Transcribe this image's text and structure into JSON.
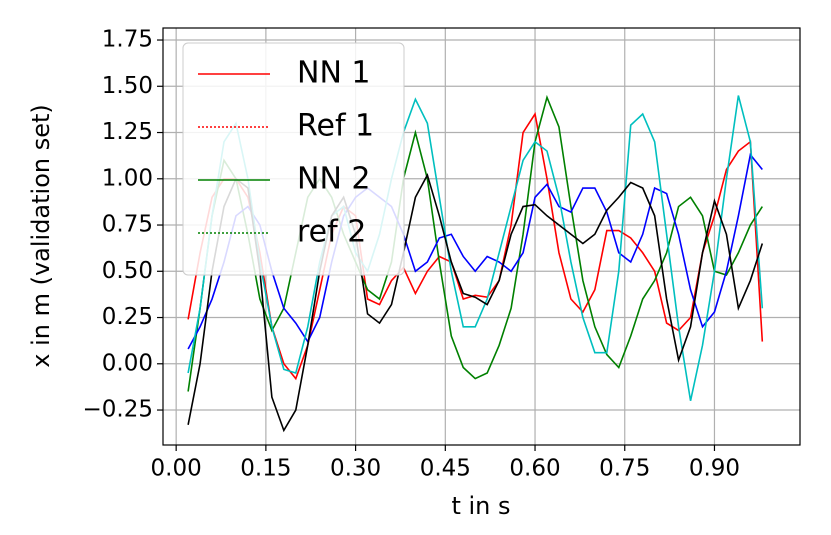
{
  "chart_data": {
    "type": "line",
    "xlabel": "t in s",
    "ylabel": "x in m (validation set)",
    "x": [
      0.02,
      0.04,
      0.06,
      0.08,
      0.1,
      0.12,
      0.14,
      0.16,
      0.18,
      0.2,
      0.22,
      0.24,
      0.26,
      0.28,
      0.3,
      0.32,
      0.34,
      0.36,
      0.38,
      0.4,
      0.42,
      0.44,
      0.46,
      0.48,
      0.5,
      0.52,
      0.54,
      0.56,
      0.58,
      0.6,
      0.62,
      0.64,
      0.66,
      0.68,
      0.7,
      0.72,
      0.74,
      0.76,
      0.78,
      0.8,
      0.82,
      0.84,
      0.86,
      0.88,
      0.9,
      0.92,
      0.94,
      0.96,
      0.98
    ],
    "series": [
      {
        "name": "NN 1",
        "color": "#ff0000",
        "dash": "solid",
        "values": [
          0.24,
          0.6,
          0.9,
          1.0,
          1.0,
          0.9,
          0.6,
          0.2,
          0.0,
          -0.08,
          0.1,
          0.4,
          0.7,
          0.85,
          0.8,
          0.35,
          0.32,
          0.45,
          0.52,
          0.38,
          0.5,
          0.58,
          0.55,
          0.35,
          0.37,
          0.36,
          0.45,
          0.75,
          1.25,
          1.35,
          1.0,
          0.6,
          0.35,
          0.28,
          0.4,
          0.72,
          0.72,
          0.68,
          0.6,
          0.5,
          0.22,
          0.18,
          0.25,
          0.6,
          0.8,
          1.05,
          1.15,
          1.2,
          0.12
        ]
      },
      {
        "name": "Ref 1",
        "color": "#ff0000",
        "dash": "dotted",
        "values": [
          null,
          null,
          null,
          null,
          null,
          null,
          null,
          null,
          null,
          null,
          null,
          null,
          null,
          null,
          null,
          null,
          null,
          null,
          null,
          null,
          null,
          null,
          null,
          null,
          null,
          null,
          null,
          null,
          null,
          null,
          null,
          null,
          null,
          null,
          null,
          null,
          null,
          null,
          null,
          null,
          null,
          null,
          null,
          null,
          null,
          null,
          null,
          null,
          null
        ]
      },
      {
        "name": "NN 2",
        "color": "#008000",
        "dash": "solid",
        "values": [
          -0.15,
          0.3,
          0.8,
          1.1,
          1.0,
          0.7,
          0.35,
          0.18,
          0.3,
          0.6,
          0.9,
          1.0,
          0.9,
          0.7,
          0.55,
          0.4,
          0.35,
          0.55,
          1.0,
          1.25,
          1.0,
          0.55,
          0.15,
          -0.02,
          -0.08,
          -0.05,
          0.1,
          0.3,
          0.7,
          1.2,
          1.44,
          1.28,
          0.85,
          0.45,
          0.2,
          0.05,
          -0.02,
          0.15,
          0.35,
          0.45,
          0.6,
          0.85,
          0.9,
          0.8,
          0.5,
          0.48,
          0.6,
          0.75,
          0.85
        ]
      },
      {
        "name": "ref 2",
        "color": "#008000",
        "dash": "dotted",
        "values": [
          null,
          null,
          null,
          null,
          null,
          null,
          null,
          null,
          null,
          null,
          null,
          null,
          null,
          null,
          null,
          null,
          null,
          null,
          null,
          null,
          null,
          null,
          null,
          null,
          null,
          null,
          null,
          null,
          null,
          null,
          null,
          null,
          null,
          null,
          null,
          null,
          null,
          null,
          null,
          null,
          null,
          null,
          null,
          null,
          null,
          null,
          null,
          null,
          null
        ]
      },
      {
        "color": "#0000ff",
        "dash": "solid",
        "values": [
          0.08,
          0.2,
          0.35,
          0.55,
          0.8,
          0.85,
          0.75,
          0.5,
          0.3,
          0.22,
          0.12,
          0.25,
          0.55,
          0.8,
          0.9,
          0.95,
          0.9,
          0.85,
          0.7,
          0.5,
          0.55,
          0.68,
          0.7,
          0.58,
          0.5,
          0.58,
          0.55,
          0.5,
          0.6,
          0.9,
          0.97,
          0.85,
          0.82,
          0.95,
          0.95,
          0.82,
          0.6,
          0.55,
          0.7,
          0.95,
          0.92,
          0.7,
          0.4,
          0.2,
          0.28,
          0.5,
          0.8,
          1.13,
          1.05
        ]
      },
      {
        "color": "#00bfbf",
        "dash": "solid",
        "values": [
          -0.05,
          0.3,
          0.8,
          1.2,
          1.3,
          1.0,
          0.55,
          0.2,
          -0.03,
          -0.05,
          0.2,
          0.55,
          0.8,
          0.85,
          0.6,
          0.5,
          0.7,
          1.0,
          1.25,
          1.43,
          1.3,
          0.9,
          0.5,
          0.2,
          0.2,
          0.35,
          0.6,
          0.85,
          1.1,
          1.2,
          1.15,
          0.9,
          0.55,
          0.25,
          0.06,
          0.06,
          0.5,
          1.29,
          1.35,
          1.2,
          0.7,
          0.2,
          -0.2,
          0.1,
          0.5,
          1.0,
          1.45,
          1.2,
          0.3
        ]
      },
      {
        "color": "#000000",
        "dash": "solid",
        "values": [
          -0.33,
          0.0,
          0.5,
          0.85,
          1.0,
          0.95,
          0.5,
          -0.18,
          -0.36,
          -0.25,
          0.1,
          0.5,
          0.8,
          0.9,
          0.7,
          0.27,
          0.22,
          0.32,
          0.6,
          0.9,
          1.02,
          0.8,
          0.55,
          0.38,
          0.36,
          0.32,
          0.45,
          0.7,
          0.85,
          0.86,
          0.8,
          0.75,
          0.7,
          0.65,
          0.7,
          0.83,
          0.9,
          0.98,
          0.95,
          0.8,
          0.35,
          0.02,
          0.2,
          0.6,
          0.88,
          0.7,
          0.3,
          0.45,
          0.65
        ]
      }
    ],
    "xlim": [
      -0.022,
      1.043
    ],
    "ylim": [
      -0.439,
      1.815
    ],
    "xticks": [
      {
        "value": 0.0,
        "label": "0.00"
      },
      {
        "value": 0.15,
        "label": "0.15"
      },
      {
        "value": 0.3,
        "label": "0.30"
      },
      {
        "value": 0.45,
        "label": "0.45"
      },
      {
        "value": 0.6,
        "label": "0.60"
      },
      {
        "value": 0.75,
        "label": "0.75"
      },
      {
        "value": 0.9,
        "label": "0.90"
      }
    ],
    "yticks": [
      {
        "value": -0.25,
        "label": "−0.25"
      },
      {
        "value": 0.0,
        "label": "0.00"
      },
      {
        "value": 0.25,
        "label": "0.25"
      },
      {
        "value": 0.5,
        "label": "0.50"
      },
      {
        "value": 0.75,
        "label": "0.75"
      },
      {
        "value": 1.0,
        "label": "1.00"
      },
      {
        "value": 1.25,
        "label": "1.25"
      },
      {
        "value": 1.5,
        "label": "1.50"
      },
      {
        "value": 1.75,
        "label": "1.75"
      }
    ],
    "grid": true,
    "legend": "upper left"
  }
}
